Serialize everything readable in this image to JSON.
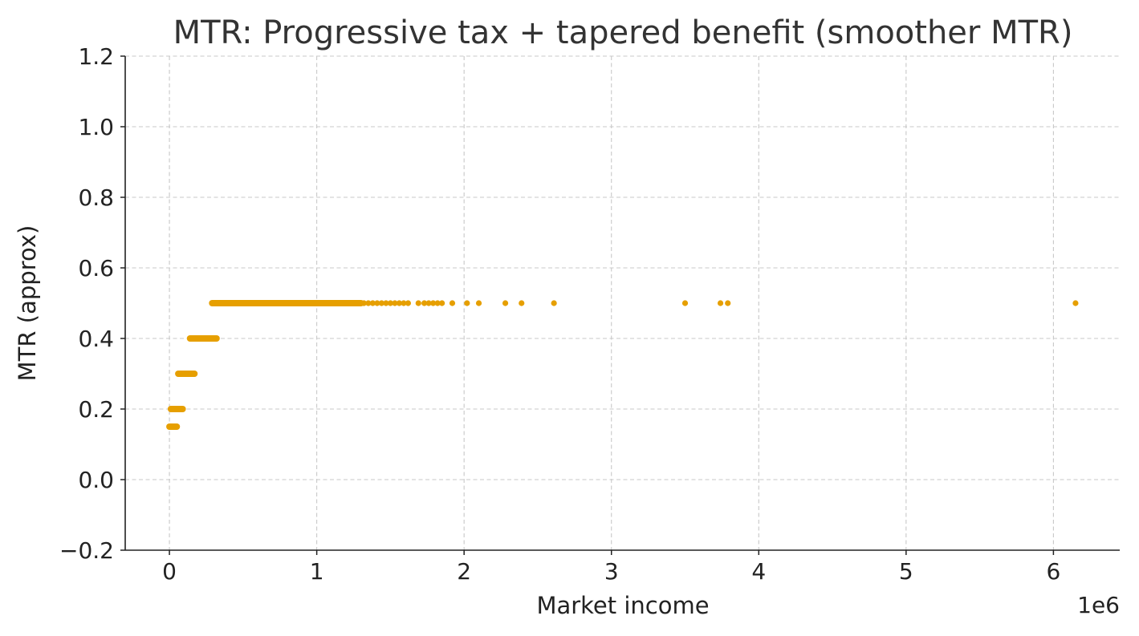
{
  "chart_data": {
    "type": "scatter",
    "title": "MTR: Progressive tax + tapered benefit (smoother MTR)",
    "xlabel": "Market income",
    "ylabel": "MTR (approx)",
    "x_offset_label": "1e6",
    "x_tick_labels": [
      "0",
      "1",
      "2",
      "3",
      "4",
      "5",
      "6"
    ],
    "y_tick_labels": [
      "−0.2",
      "0.0",
      "0.2",
      "0.4",
      "0.6",
      "0.8",
      "1.0",
      "1.2"
    ],
    "x_ticks": [
      0,
      1000000,
      2000000,
      3000000,
      4000000,
      5000000,
      6000000
    ],
    "y_ticks": [
      -0.2,
      0.0,
      0.2,
      0.4,
      0.6,
      0.8,
      1.0,
      1.2
    ],
    "xlim": [
      -300000,
      6450000
    ],
    "ylim": [
      -0.2,
      1.2
    ],
    "grid": true,
    "marker_color": "#E69F00",
    "segments": [
      {
        "x_start": 0,
        "x_end": 50000,
        "y": 0.15
      },
      {
        "x_start": 10000,
        "x_end": 90000,
        "y": 0.2
      },
      {
        "x_start": 60000,
        "x_end": 170000,
        "y": 0.3
      },
      {
        "x_start": 140000,
        "x_end": 320000,
        "y": 0.4
      },
      {
        "x_start": 290000,
        "x_end": 1300000,
        "y": 0.5
      }
    ],
    "points": [
      {
        "x": 1320000,
        "y": 0.5
      },
      {
        "x": 1350000,
        "y": 0.5
      },
      {
        "x": 1380000,
        "y": 0.5
      },
      {
        "x": 1410000,
        "y": 0.5
      },
      {
        "x": 1440000,
        "y": 0.5
      },
      {
        "x": 1470000,
        "y": 0.5
      },
      {
        "x": 1500000,
        "y": 0.5
      },
      {
        "x": 1530000,
        "y": 0.5
      },
      {
        "x": 1560000,
        "y": 0.5
      },
      {
        "x": 1590000,
        "y": 0.5
      },
      {
        "x": 1620000,
        "y": 0.5
      },
      {
        "x": 1690000,
        "y": 0.5
      },
      {
        "x": 1730000,
        "y": 0.5
      },
      {
        "x": 1760000,
        "y": 0.5
      },
      {
        "x": 1790000,
        "y": 0.5
      },
      {
        "x": 1820000,
        "y": 0.5
      },
      {
        "x": 1850000,
        "y": 0.5
      },
      {
        "x": 1920000,
        "y": 0.5
      },
      {
        "x": 2020000,
        "y": 0.5
      },
      {
        "x": 2100000,
        "y": 0.5
      },
      {
        "x": 2280000,
        "y": 0.5
      },
      {
        "x": 2390000,
        "y": 0.5
      },
      {
        "x": 2610000,
        "y": 0.5
      },
      {
        "x": 3500000,
        "y": 0.5
      },
      {
        "x": 3740000,
        "y": 0.5
      },
      {
        "x": 3790000,
        "y": 0.5
      },
      {
        "x": 6150000,
        "y": 0.5
      }
    ]
  }
}
